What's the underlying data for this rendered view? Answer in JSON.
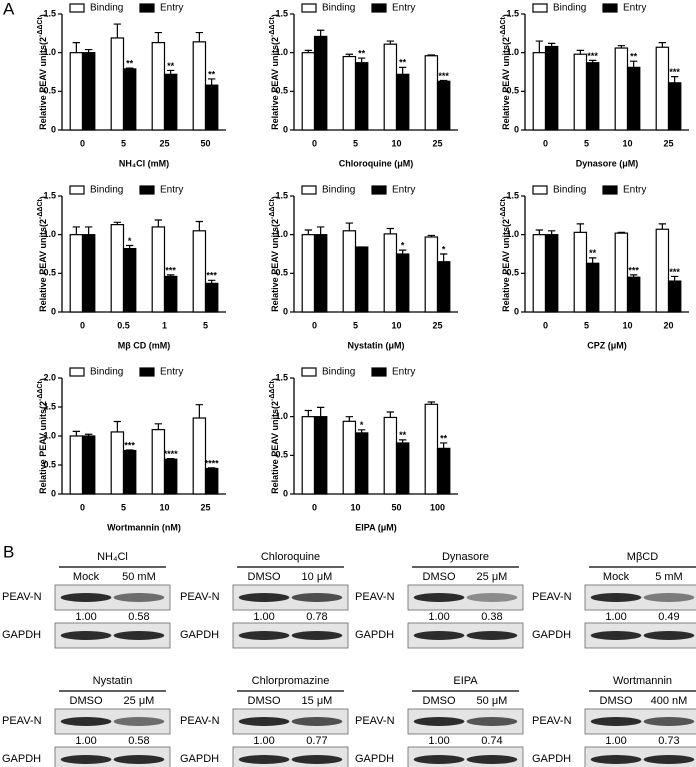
{
  "panel_labels": [
    "A",
    "B"
  ],
  "chart_data": [
    {
      "type": "bar",
      "ylabel": [
        "Relative PEAV units(2",
        "-ΔΔCt",
        ")"
      ],
      "xlabel": "NH₄Cl  (mM)",
      "categories": [
        "0",
        "5",
        "25",
        "50"
      ],
      "ylim": [
        0,
        1.5
      ],
      "yticks": [
        0,
        0.5,
        {
          "value": 1.0,
          "label": "1.0"
        },
        1.5
      ],
      "series": [
        {
          "name": "Binding",
          "color": "#ffffff",
          "values": [
            1.0,
            1.19,
            1.13,
            1.14
          ],
          "errors": [
            0.13,
            0.18,
            0.13,
            0.12
          ]
        },
        {
          "name": "Entry",
          "color": "#000000",
          "values": [
            1.0,
            0.79,
            0.72,
            0.58
          ],
          "errors": [
            0.04,
            0.01,
            0.05,
            0.08
          ],
          "significance": [
            null,
            "**",
            "**",
            "**"
          ]
        }
      ]
    },
    {
      "type": "bar",
      "ylabel": [
        "Relative PEAV units(2",
        "-ΔΔCt",
        ")"
      ],
      "xlabel": "Chloroquine  (μM)",
      "categories": [
        "0",
        "5",
        "10",
        "25"
      ],
      "ylim": [
        0,
        1.5
      ],
      "yticks": [
        0,
        0.5,
        {
          "value": 1.0,
          "label": "1.0"
        },
        1.5
      ],
      "series": [
        {
          "name": "Binding",
          "color": "#ffffff",
          "values": [
            1.0,
            0.95,
            1.11,
            0.96
          ],
          "errors": [
            0.03,
            0.03,
            0.04,
            0.01
          ]
        },
        {
          "name": "Entry",
          "color": "#000000",
          "values": [
            1.21,
            0.87,
            0.72,
            0.63
          ],
          "errors": [
            0.08,
            0.06,
            0.09,
            0.01
          ],
          "significance": [
            null,
            "**",
            "**",
            "***"
          ]
        }
      ]
    },
    {
      "type": "bar",
      "ylabel": [
        "Relative PEAV units(2",
        "-ΔΔCt",
        ")"
      ],
      "xlabel": "Dynasore  (μM)",
      "categories": [
        "0",
        "5",
        "10",
        "25"
      ],
      "ylim": [
        0,
        1.5
      ],
      "yticks": [
        0,
        0.5,
        {
          "value": 1.0,
          "label": "1.0"
        },
        1.5
      ],
      "series": [
        {
          "name": "Binding",
          "color": "#ffffff",
          "values": [
            1.0,
            0.98,
            1.06,
            1.07
          ],
          "errors": [
            0.15,
            0.05,
            0.03,
            0.06
          ]
        },
        {
          "name": "Entry",
          "color": "#000000",
          "values": [
            1.08,
            0.87,
            0.81,
            0.61
          ],
          "errors": [
            0.04,
            0.03,
            0.08,
            0.08
          ],
          "significance": [
            null,
            "***",
            "**",
            "***"
          ]
        }
      ]
    },
    {
      "type": "bar",
      "ylabel": [
        "Relative PEAV units(2",
        "-ΔΔCt",
        ")"
      ],
      "xlabel": "Mβ CD  (mM)",
      "categories": [
        "0",
        "0.5",
        "1",
        "5"
      ],
      "ylim": [
        0,
        1.5
      ],
      "yticks": [
        0,
        0.5,
        {
          "value": 1.0,
          "label": "1.0"
        },
        1.5
      ],
      "series": [
        {
          "name": "Binding",
          "color": "#ffffff",
          "values": [
            1.0,
            1.13,
            1.1,
            1.05
          ],
          "errors": [
            0.1,
            0.03,
            0.09,
            0.12
          ]
        },
        {
          "name": "Entry",
          "color": "#000000",
          "values": [
            1.0,
            0.82,
            0.46,
            0.37
          ],
          "errors": [
            0.1,
            0.04,
            0.02,
            0.04
          ],
          "significance": [
            null,
            "*",
            "***",
            "***"
          ]
        }
      ]
    },
    {
      "type": "bar",
      "ylabel": [
        "Relative PEAV units(2",
        "-ΔΔCt",
        ")"
      ],
      "xlabel": "Nystatin  (μM)",
      "categories": [
        "0",
        "5",
        "10",
        "25"
      ],
      "ylim": [
        0,
        1.5
      ],
      "yticks": [
        0,
        0.5,
        {
          "value": 1.0,
          "label": "1.0"
        },
        1.5
      ],
      "series": [
        {
          "name": "Binding",
          "color": "#ffffff",
          "values": [
            1.0,
            1.05,
            1.01,
            0.97
          ],
          "errors": [
            0.06,
            0.1,
            0.07,
            0.02
          ]
        },
        {
          "name": "Entry",
          "color": "#000000",
          "values": [
            1.0,
            0.84,
            0.75,
            0.65
          ],
          "errors": [
            0.1,
            0.0,
            0.05,
            0.1
          ],
          "significance": [
            null,
            null,
            "*",
            "*"
          ]
        }
      ]
    },
    {
      "type": "bar",
      "ylabel": [
        "Relative PEAV units(2",
        "-ΔΔCt",
        ")"
      ],
      "xlabel": "CPZ  (μM)",
      "categories": [
        "0",
        "5",
        "10",
        "20"
      ],
      "ylim": [
        0,
        1.5
      ],
      "yticks": [
        0,
        0.5,
        {
          "value": 1.0,
          "label": "1.0"
        },
        1.5
      ],
      "series": [
        {
          "name": "Binding",
          "color": "#ffffff",
          "values": [
            1.0,
            1.03,
            1.02,
            1.07
          ],
          "errors": [
            0.06,
            0.11,
            0.01,
            0.07
          ]
        },
        {
          "name": "Entry",
          "color": "#000000",
          "values": [
            1.0,
            0.63,
            0.45,
            0.4
          ],
          "errors": [
            0.05,
            0.07,
            0.03,
            0.06
          ],
          "significance": [
            null,
            "**",
            "***",
            "***"
          ]
        }
      ]
    },
    {
      "type": "bar",
      "ylabel": [
        "Relative PEAV units(2",
        "-ΔΔCt",
        ")"
      ],
      "xlabel": "Wortmannin  (nM)",
      "categories": [
        "0",
        "5",
        "10",
        "25"
      ],
      "ylim": [
        0,
        2.0
      ],
      "yticks": [
        0,
        0.5,
        {
          "value": 1.0,
          "label": "1.0"
        },
        1.5,
        {
          "value": 2.0,
          "label": "2.0"
        }
      ],
      "series": [
        {
          "name": "Binding",
          "color": "#ffffff",
          "values": [
            1.0,
            1.07,
            1.11,
            1.31
          ],
          "errors": [
            0.08,
            0.18,
            0.1,
            0.23
          ]
        },
        {
          "name": "Entry",
          "color": "#000000",
          "values": [
            1.0,
            0.75,
            0.6,
            0.44
          ],
          "errors": [
            0.03,
            0.01,
            0.01,
            0.01
          ],
          "significance": [
            null,
            "***",
            "****",
            "****"
          ]
        }
      ]
    },
    {
      "type": "bar",
      "ylabel": [
        "Relative PEAV units(2",
        "-ΔΔCt",
        ")"
      ],
      "xlabel": "EIPA  (μM)",
      "categories": [
        "0",
        "10",
        "50",
        "100"
      ],
      "ylim": [
        0,
        1.5
      ],
      "yticks": [
        0,
        0.5,
        {
          "value": 1.0,
          "label": "1.0"
        },
        1.5
      ],
      "series": [
        {
          "name": "Binding",
          "color": "#ffffff",
          "values": [
            1.0,
            0.94,
            0.99,
            1.16
          ],
          "errors": [
            0.08,
            0.06,
            0.07,
            0.03
          ]
        },
        {
          "name": "Entry",
          "color": "#000000",
          "values": [
            1.0,
            0.79,
            0.66,
            0.59
          ],
          "errors": [
            0.12,
            0.04,
            0.04,
            0.07
          ],
          "significance": [
            null,
            "*",
            "**",
            "**"
          ]
        }
      ]
    }
  ],
  "blots": [
    {
      "title": "NH₄Cl",
      "lanes": [
        "Mock",
        "50 mM"
      ],
      "rows": [
        "PEAV-N",
        "GAPDH"
      ],
      "ratios": [
        "1.00",
        "0.58"
      ]
    },
    {
      "title": "Chloroquine",
      "lanes": [
        "DMSO",
        "10 μM"
      ],
      "rows": [
        "PEAV-N",
        "GAPDH"
      ],
      "ratios": [
        "1.00",
        "0.78"
      ]
    },
    {
      "title": "Dynasore",
      "lanes": [
        "DMSO",
        "25 μM"
      ],
      "rows": [
        "PEAV-N",
        "GAPDH"
      ],
      "ratios": [
        "1.00",
        "0.38"
      ]
    },
    {
      "title": "MβCD",
      "lanes": [
        "Mock",
        "5 mM"
      ],
      "rows": [
        "PEAV-N",
        "GAPDH"
      ],
      "ratios": [
        "1.00",
        "0.49"
      ]
    },
    {
      "title": "Nystatin",
      "lanes": [
        "DMSO",
        "25 μM"
      ],
      "rows": [
        "PEAV-N",
        "GAPDH"
      ],
      "ratios": [
        "1.00",
        "0.58"
      ]
    },
    {
      "title": "Chlorpromazine",
      "lanes": [
        "DMSO",
        "15 μM"
      ],
      "rows": [
        "PEAV-N",
        "GAPDH"
      ],
      "ratios": [
        "1.00",
        "0.77"
      ]
    },
    {
      "title": "EIPA",
      "lanes": [
        "DMSO",
        "50 μM"
      ],
      "rows": [
        "PEAV-N",
        "GAPDH"
      ],
      "ratios": [
        "1.00",
        "0.74"
      ]
    },
    {
      "title": "Wortmannin",
      "lanes": [
        "DMSO",
        "400 nM"
      ],
      "rows": [
        "PEAV-N",
        "GAPDH"
      ],
      "ratios": [
        "1.00",
        "0.73"
      ]
    }
  ]
}
